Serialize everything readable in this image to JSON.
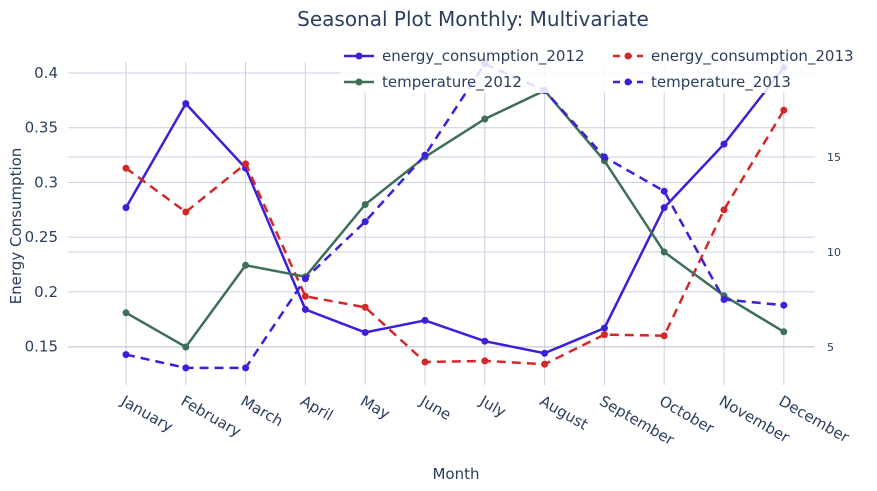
{
  "chart_data": {
    "type": "line",
    "title": "Seasonal Plot Monthly: Multivariate",
    "xlabel": "Month",
    "ylabel": "Energy Consumption",
    "y2label": "",
    "categories": [
      "January",
      "February",
      "March",
      "April",
      "May",
      "June",
      "July",
      "August",
      "September",
      "October",
      "November",
      "December"
    ],
    "ylim": [
      0.115,
      0.41
    ],
    "y_ticks": [
      0.15,
      0.2,
      0.25,
      0.3,
      0.35,
      0.4
    ],
    "y_tick_labels": [
      "0.15",
      "0.2",
      "0.25",
      "0.3",
      "0.35",
      "0.4"
    ],
    "y2lim": [
      3.0,
      20.0
    ],
    "y2_ticks": [
      5,
      10,
      15
    ],
    "y2_tick_labels": [
      "5",
      "10",
      "15"
    ],
    "grid": true,
    "legend_placement": "top-right",
    "series": [
      {
        "name": "energy_consumption_2012",
        "axis": "y",
        "color": "#3b1fdb",
        "dash": "solid",
        "values": [
          0.277,
          0.372,
          0.313,
          0.184,
          0.163,
          0.174,
          0.155,
          0.144,
          0.167,
          0.277,
          0.335,
          0.405
        ]
      },
      {
        "name": "energy_consumption_2013",
        "axis": "y",
        "color": "#d62728",
        "dash": "dash",
        "values": [
          0.313,
          0.273,
          0.317,
          0.196,
          0.186,
          0.136,
          0.137,
          0.134,
          0.161,
          0.16,
          0.275,
          0.366
        ]
      },
      {
        "name": "temperature_2012",
        "axis": "y2",
        "color": "#3f6f57",
        "dash": "solid",
        "values": [
          6.8,
          5.0,
          9.3,
          8.7,
          12.5,
          15.0,
          17.0,
          18.5,
          14.8,
          10.0,
          7.7,
          5.8
        ]
      },
      {
        "name": "temperature_2013",
        "axis": "y2",
        "color": "#3b1fdb",
        "dash": "dash",
        "values": [
          4.6,
          3.9,
          3.9,
          8.6,
          11.6,
          15.1,
          19.9,
          18.5,
          15.0,
          13.2,
          7.5,
          7.2
        ]
      }
    ]
  }
}
